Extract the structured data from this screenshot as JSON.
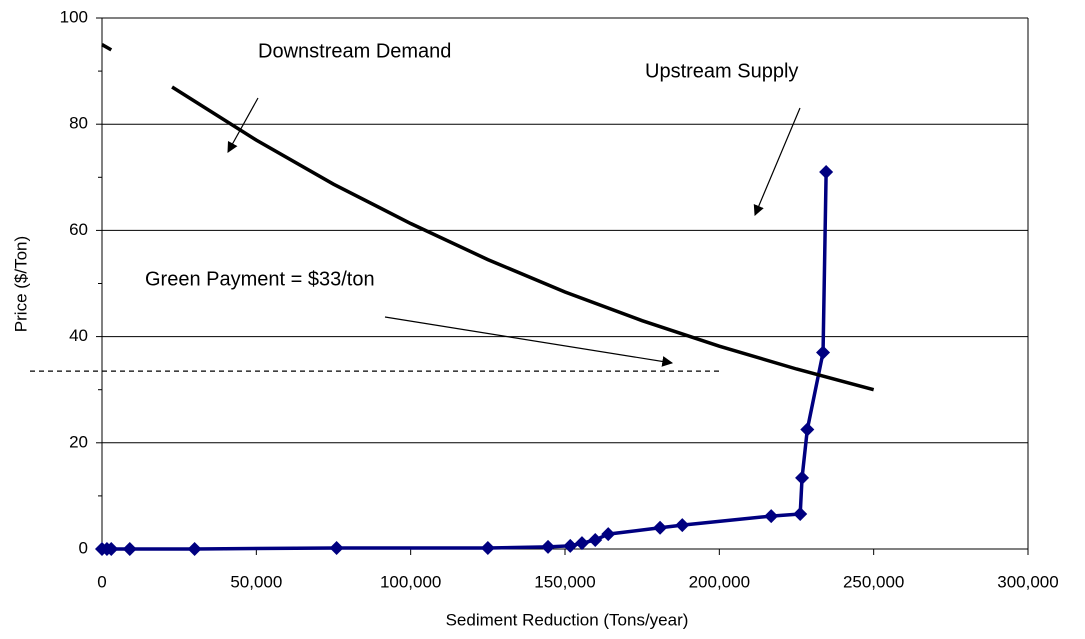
{
  "chart_data": {
    "type": "line",
    "x_label": "Sediment Reduction (Tons/year)",
    "y_label": "Price ($/Ton)",
    "xlim": [
      0,
      300000
    ],
    "ylim": [
      0,
      100
    ],
    "xticks": [
      0,
      {
        "value": 50000,
        "label": "50,000"
      },
      {
        "value": 100000,
        "label": "100,000"
      },
      {
        "value": 150000,
        "label": "150,000"
      },
      {
        "value": 200000,
        "label": "200,000"
      },
      {
        "value": 250000,
        "label": "250,000"
      },
      {
        "value": 300000,
        "label": "300,000"
      }
    ],
    "yticks": [
      0,
      20,
      40,
      60,
      80,
      100
    ],
    "grid": true,
    "series": [
      {
        "color": "#000080",
        "marker": "diamond",
        "x": [
          0,
          1600,
          3000,
          9000,
          30000,
          76000,
          125000,
          144500,
          151700,
          155500,
          159800,
          164000,
          180800,
          188000,
          216800,
          226200,
          226800,
          228500,
          233600,
          234600
        ],
        "values": [
          0,
          0,
          0,
          0,
          0,
          0.2,
          0.2,
          0.4,
          0.6,
          1.1,
          1.7,
          2.8,
          4,
          4.5,
          6.2,
          6.6,
          13.4,
          22.5,
          37,
          71
        ]
      },
      {
        "color": "#000000",
        "x": [
          0,
          3000,
          12000,
          22700,
          50000,
          75000,
          100000,
          125000,
          150000,
          175000,
          200000,
          225000,
          250000
        ],
        "values": [
          95,
          94,
          null,
          87,
          77,
          68.7,
          61.3,
          54.5,
          48.4,
          43,
          38.2,
          33.9,
          30
        ]
      }
    ],
    "reference_line": {
      "value": 33.5,
      "xmax": 200000,
      "dashed": true
    },
    "annotations": [
      "Downstream Demand",
      "Upstream Supply",
      "Green Payment = $33/ton"
    ]
  }
}
